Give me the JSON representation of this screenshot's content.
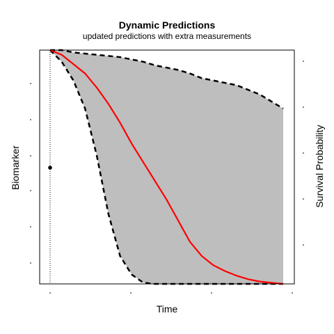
{
  "chart_data": {
    "type": "area",
    "title": "Dynamic Predictions",
    "subtitle": "updated predictions with extra measurements",
    "xlabel": "Time",
    "ylabel_left": "Biomarker",
    "ylabel_right": "Survival Probability",
    "xlim": [
      0,
      10.5
    ],
    "ylim": [
      0,
      1
    ],
    "last_measurement_time": 0,
    "biomarker_points": [
      {
        "x": 0,
        "y": 0.5
      }
    ],
    "survival_mean": {
      "name": "mean",
      "color": "#ff0000",
      "x": [
        0,
        0.5,
        1,
        1.5,
        2,
        2.5,
        3,
        3.5,
        4,
        4.5,
        5,
        5.5,
        6,
        6.5,
        7,
        7.5,
        8,
        8.5,
        9,
        9.5,
        10
      ],
      "y": [
        1.0,
        0.98,
        0.94,
        0.9,
        0.84,
        0.77,
        0.69,
        0.6,
        0.52,
        0.44,
        0.36,
        0.27,
        0.18,
        0.12,
        0.08,
        0.055,
        0.035,
        0.02,
        0.01,
        0.005,
        0.0
      ]
    },
    "survival_upper": {
      "name": "upper",
      "x": [
        0,
        0.5,
        1,
        1.5,
        2,
        2.5,
        3,
        3.5,
        4,
        4.5,
        5,
        5.5,
        6,
        6.5,
        7,
        7.5,
        8,
        8.5,
        9,
        9.5,
        10
      ],
      "y": [
        1.0,
        1.0,
        0.99,
        0.985,
        0.98,
        0.975,
        0.97,
        0.96,
        0.95,
        0.935,
        0.925,
        0.915,
        0.9,
        0.88,
        0.87,
        0.86,
        0.85,
        0.83,
        0.81,
        0.78,
        0.75
      ]
    },
    "survival_lower": {
      "name": "lower",
      "x": [
        0,
        0.5,
        1,
        1.5,
        2,
        2.5,
        3,
        3.5,
        4,
        4.5,
        5,
        5.5,
        6,
        6.5,
        7,
        7.5,
        8,
        8.5,
        9,
        9.5,
        10
      ],
      "y": [
        1.0,
        0.95,
        0.87,
        0.75,
        0.55,
        0.3,
        0.12,
        0.04,
        0.005,
        0.0,
        0.0,
        0.0,
        0.0,
        0.0,
        0.0,
        0.0,
        0.0,
        0.0,
        0.0,
        0.0,
        0.0
      ]
    },
    "band_color": "#bebebe",
    "grid": false
  }
}
